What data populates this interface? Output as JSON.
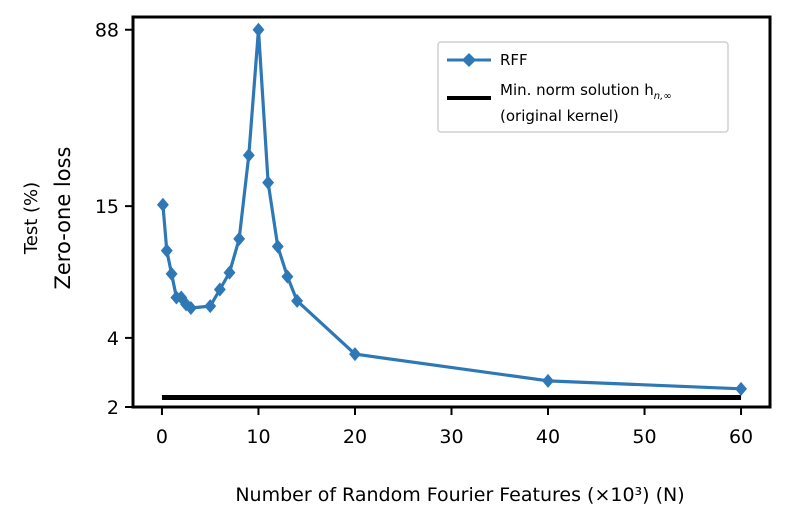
{
  "chart_data": {
    "type": "line",
    "xlabel": "Number of Random Fourier Features (×10³) (N)",
    "ylabel_top": "Test (%)",
    "ylabel_main": "Zero-one loss",
    "xlim": [
      -3,
      63
    ],
    "ylim": [
      2,
      100
    ],
    "yscale": "log",
    "xticks": [
      0,
      10,
      20,
      30,
      40,
      50,
      60
    ],
    "yticks": [
      2,
      4,
      15,
      88
    ],
    "grid": false,
    "legend_position": "top-right",
    "series": [
      {
        "name": "RFF",
        "color": "#2e78b5",
        "marker": "diamond",
        "x": [
          0.1,
          0.5,
          1,
          1.5,
          2,
          2.5,
          3,
          5,
          6,
          7,
          8,
          9,
          10,
          11,
          12,
          13,
          14,
          20,
          40,
          60
        ],
        "y": [
          15.2,
          9.6,
          7.6,
          6.0,
          6.0,
          5.6,
          5.4,
          5.5,
          6.5,
          7.7,
          10.8,
          25.0,
          88,
          19.0,
          10.0,
          7.4,
          5.8,
          3.4,
          2.6,
          2.4
        ]
      },
      {
        "name": "Min. norm solution h_{n,∞} (original kernel)",
        "legend_line1": "Min. norm solution h",
        "legend_sub": "n,∞",
        "legend_line2": "(original kernel)",
        "color": "#000000",
        "x": [
          0,
          60
        ],
        "y": [
          2.2,
          2.2
        ]
      }
    ]
  }
}
